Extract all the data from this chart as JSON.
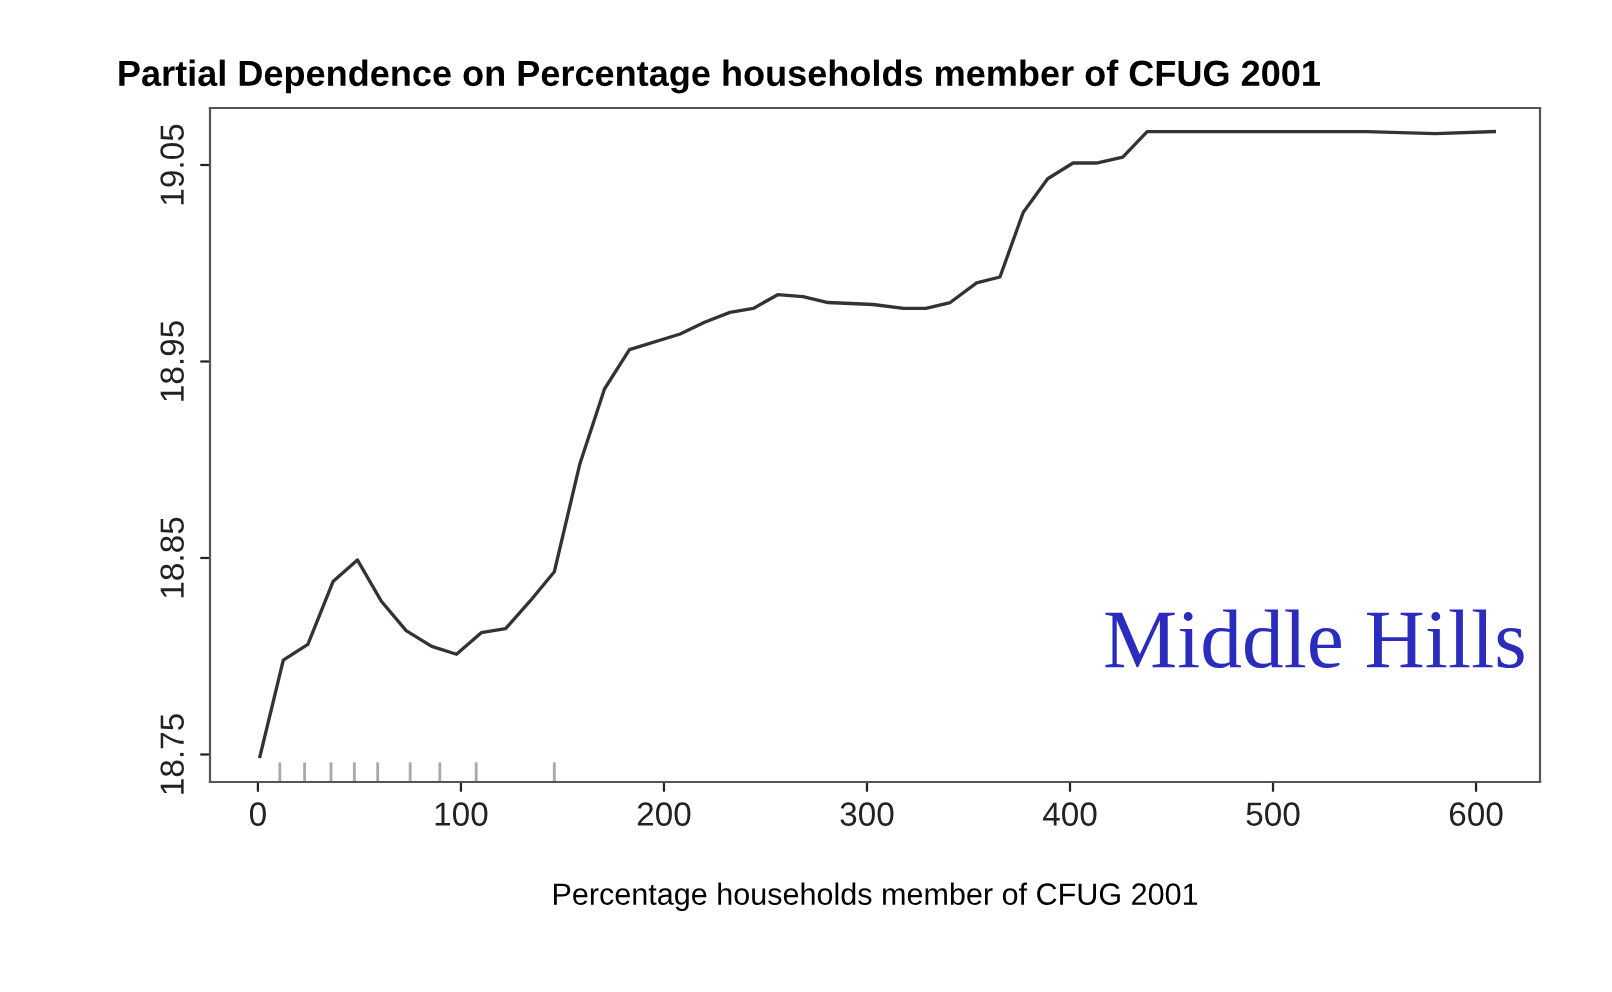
{
  "chart_data": {
    "type": "line",
    "title": "Partial Dependence on Percentage households member of CFUG 2001",
    "xlabel": "Percentage households member of CFUG 2001",
    "series": [
      {
        "color": "#333333",
        "x": [
          1,
          12.5,
          24.6,
          37,
          49,
          60.8,
          73,
          85.6,
          97.8,
          110,
          122,
          134,
          146,
          158.6,
          170.7,
          183,
          208,
          220,
          232.5,
          244,
          256,
          268.5,
          280.8,
          303,
          318,
          329,
          341,
          354,
          365.5,
          377,
          389,
          401.5,
          413,
          426,
          438,
          497,
          546,
          580,
          609
        ],
        "values": [
          18.749,
          18.798,
          18.806,
          18.838,
          18.849,
          18.828,
          18.813,
          18.805,
          18.801,
          18.812,
          18.814,
          18.828,
          18.843,
          18.898,
          18.936,
          18.956,
          18.964,
          18.97,
          18.975,
          18.977,
          18.984,
          18.983,
          18.98,
          18.979,
          18.977,
          18.977,
          18.98,
          18.99,
          18.993,
          19.026,
          19.043,
          19.051,
          19.051,
          19.054,
          19.067,
          19.067,
          19.067,
          19.066,
          19.067
        ]
      },
      {
        "type": "bar",
        "color": "#aaaaaa",
        "x": [
          10.8,
          23,
          36,
          47.5,
          59,
          75,
          89.6,
          107.5,
          146
        ],
        "base": [
          18.736,
          18.736,
          18.736,
          18.736,
          18.736,
          18.736,
          18.736,
          18.736,
          18.736
        ],
        "values": [
          0.01,
          0.01,
          0.01,
          0.01,
          0.01,
          0.01,
          0.01,
          0.01,
          0.01
        ]
      }
    ],
    "annotations": [
      "Middle Hills"
    ],
    "xlim": [
      -23.6,
      631.5
    ],
    "ylim": [
      18.736,
      19.079
    ],
    "xticks": [
      0,
      100,
      200,
      300,
      400,
      500,
      600
    ],
    "yticks": [
      18.75,
      18.85,
      18.95,
      19.05
    ],
    "grid": false,
    "legend": false,
    "line_style": "solid"
  }
}
